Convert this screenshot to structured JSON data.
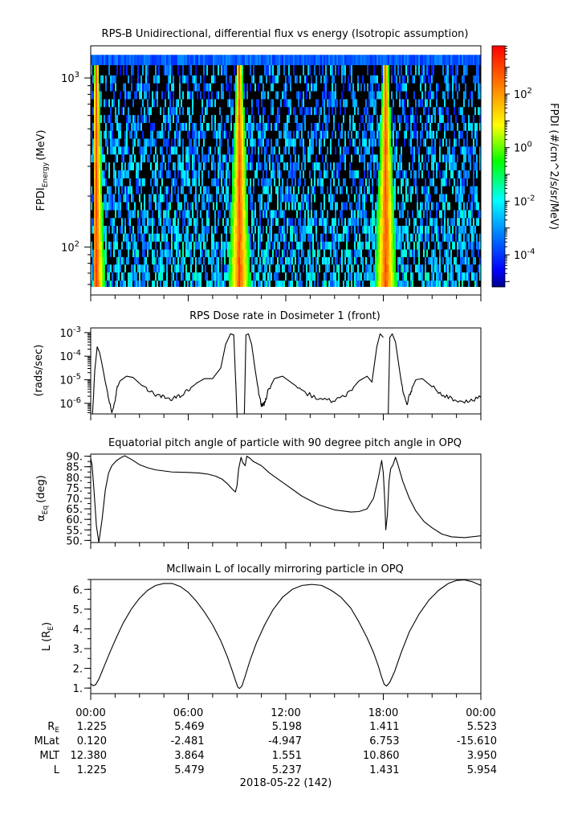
{
  "chart_data": [
    {
      "type": "heatmap",
      "title": "RPS-B  Unidirectional, differential flux vs energy (Isotropic assumption)",
      "ylabel": "FPDI",
      "ylabel_sub": "Energy",
      "ylabel_unit": "(MeV)",
      "yscale": "log",
      "ylim": [
        52,
        1550
      ],
      "ytick_labels": [
        {
          "value": 100,
          "base": "10",
          "exp": "2"
        },
        {
          "value": 1000,
          "base": "10",
          "exp": "3"
        }
      ],
      "xlim": [
        0,
        24
      ],
      "energy_bins_mev": [
        60,
        67,
        75,
        83,
        92,
        102,
        114,
        127,
        141,
        157,
        175,
        195,
        218,
        242,
        270,
        301,
        335,
        373,
        416,
        463,
        515,
        574,
        639,
        712,
        793,
        884,
        985,
        1097,
        1300
      ],
      "bright_bands_hours": [
        {
          "center": 0.35,
          "width": 0.55,
          "shape": "decay-right"
        },
        {
          "center": 9.15,
          "width": 0.7,
          "shape": "symmetric"
        },
        {
          "center": 18.15,
          "width": 0.7,
          "shape": "symmetric"
        }
      ],
      "colorbar": {
        "label": "FPDI (#/cm^2/s/sr/MeV)",
        "scale": "log",
        "range": [
          -5.2,
          3.8
        ],
        "tick_labels": [
          {
            "value": 2,
            "base": "10",
            "exp": "2"
          },
          {
            "value": 0,
            "base": "10",
            "exp": "0"
          },
          {
            "value": -2,
            "base": "10",
            "exp": "-2"
          },
          {
            "value": -4,
            "base": "10",
            "exp": "-4"
          }
        ],
        "colors": [
          "#00008b",
          "#0000ff",
          "#0080ff",
          "#00ffff",
          "#00ff00",
          "#ffff00",
          "#ff8000",
          "#ff0000"
        ]
      }
    },
    {
      "type": "line",
      "title": "RPS  Dose rate in Dosimeter 1 (front)",
      "ylabel": "(rads/sec)",
      "yscale": "log",
      "ylim": [
        -6.45,
        -2.8
      ],
      "ytick_labels": [
        {
          "value": -3,
          "base": "10",
          "exp": "-3"
        },
        {
          "value": -4,
          "base": "10",
          "exp": "-4"
        },
        {
          "value": -5,
          "base": "10",
          "exp": "-5"
        },
        {
          "value": -6,
          "base": "10",
          "exp": "-6"
        }
      ],
      "xlim": [
        0,
        24
      ],
      "series": [
        {
          "x": [
            0.1,
            0.25,
            0.4,
            0.55,
            0.7,
            0.9,
            1.1,
            1.3,
            1.5,
            1.6,
            1.8,
            2.2,
            2.6,
            3.0,
            3.5,
            4.0,
            4.5,
            5.0,
            5.5,
            6.0,
            6.5,
            7.0,
            7.5,
            8.0,
            8.3,
            8.6,
            8.8,
            9.0
          ],
          "y": [
            -6.6,
            -4.6,
            -3.6,
            -3.85,
            -4.35,
            -5.1,
            -5.8,
            -6.4,
            -5.9,
            -5.4,
            -5.05,
            -4.85,
            -4.9,
            -5.15,
            -5.45,
            -5.65,
            -5.75,
            -5.8,
            -5.7,
            -5.45,
            -5.15,
            -4.95,
            -4.95,
            -4.5,
            -3.5,
            -3.05,
            -3.1,
            -6.5
          ]
        },
        {
          "x": [
            9.45,
            9.55,
            9.7,
            9.9,
            10.1,
            10.3,
            10.5,
            10.7,
            10.9,
            11.3,
            11.8,
            12.5,
            13.2,
            14.0,
            14.8,
            15.4,
            16.0,
            16.5,
            17.0,
            17.3,
            17.6,
            17.8,
            18.0
          ],
          "y": [
            -6.5,
            -3.1,
            -3.05,
            -3.5,
            -4.5,
            -5.4,
            -6.1,
            -6.0,
            -5.5,
            -4.95,
            -4.85,
            -5.2,
            -5.55,
            -5.8,
            -5.9,
            -5.8,
            -5.45,
            -5.05,
            -4.85,
            -5.1,
            -3.6,
            -3.05,
            -3.2
          ]
        },
        {
          "x": [
            18.3,
            18.4,
            18.55,
            18.75,
            19.0,
            19.2,
            19.45,
            19.6,
            19.8,
            20.0,
            20.4,
            21.0,
            21.6,
            22.2,
            22.8,
            23.4,
            24.0
          ],
          "y": [
            -6.6,
            -3.2,
            -3.05,
            -3.4,
            -4.6,
            -5.5,
            -6.05,
            -5.7,
            -5.3,
            -5.0,
            -4.95,
            -5.3,
            -5.6,
            -5.8,
            -5.9,
            -5.9,
            -5.75
          ]
        }
      ]
    },
    {
      "type": "line",
      "title": "Equatorial pitch angle of particle with 90 degree pitch angle in OPQ",
      "ylabel": "α",
      "ylabel_sub": "Eq",
      "ylabel_unit": "(deg)",
      "ylim": [
        49,
        91
      ],
      "yticks": [
        50,
        55,
        60,
        65,
        70,
        75,
        80,
        85,
        90
      ],
      "ytick_labels": [
        "50.",
        "55.",
        "60.",
        "65.",
        "70.",
        "75.",
        "80.",
        "85.",
        "90."
      ],
      "xlim": [
        0,
        24
      ],
      "series": [
        {
          "x": [
            0.0,
            0.08,
            0.2,
            0.35,
            0.5,
            0.7,
            0.9,
            1.1,
            1.3,
            1.6,
            1.9,
            2.1,
            2.5,
            3.0,
            3.5,
            4.0,
            5.0,
            6.0,
            6.7,
            7.2,
            7.7,
            8.1,
            8.4,
            8.7,
            8.9,
            9.0,
            9.1,
            9.25,
            9.35,
            9.5,
            9.6,
            9.8,
            10.0,
            10.5,
            11.0,
            12.0,
            13.0,
            14.0,
            15.0,
            16.0,
            16.5,
            17.0,
            17.4,
            17.7,
            17.9,
            18.0,
            18.1,
            18.15,
            18.25,
            18.35,
            18.45,
            18.6,
            18.75,
            18.9,
            19.2,
            19.6,
            20.0,
            20.5,
            21.0,
            21.6,
            22.2,
            23.0,
            24.0
          ],
          "y": [
            89,
            86,
            74,
            57,
            49,
            60,
            74,
            82,
            85.5,
            88,
            89.5,
            90.2,
            88.5,
            86,
            84.5,
            83.5,
            82.5,
            82.3,
            82.0,
            81.5,
            80.5,
            79,
            77,
            74.5,
            73,
            76,
            84,
            89.5,
            87,
            85.5,
            90,
            89,
            87.5,
            85.5,
            82,
            76.5,
            71,
            67,
            64.5,
            63.5,
            63.7,
            65,
            70,
            80,
            88,
            82,
            67,
            55,
            62,
            78,
            84,
            86,
            89.5,
            86,
            78,
            70,
            64,
            59,
            56,
            53,
            51.7,
            51.3,
            52.2
          ]
        }
      ]
    },
    {
      "type": "line",
      "title": "McIlwain L of locally mirroring particle in OPQ",
      "ylabel": "L (R",
      "ylabel_sub": "E",
      "ylabel_unit": ")",
      "ylim": [
        0.72,
        6.5
      ],
      "yticks": [
        1,
        2,
        3,
        4,
        5,
        6
      ],
      "ytick_labels": [
        "1.",
        "2.",
        "3.",
        "4.",
        "5.",
        "6."
      ],
      "xlim": [
        0,
        24
      ],
      "series": [
        {
          "x": [
            0.0,
            0.15,
            0.3,
            0.5,
            0.8,
            1.2,
            1.6,
            2.0,
            2.5,
            3.0,
            3.5,
            4.0,
            4.5,
            5.0,
            5.5,
            6.0,
            6.5,
            7.0,
            7.5,
            8.0,
            8.4,
            8.7,
            8.9,
            9.05,
            9.15,
            9.3,
            9.5,
            9.8,
            10.2,
            10.7,
            11.2,
            11.8,
            12.4,
            13.0,
            13.6,
            14.2,
            14.8,
            15.4,
            16.0,
            16.5,
            17.0,
            17.4,
            17.7,
            17.9,
            18.05,
            18.2,
            18.4,
            18.7,
            19.1,
            19.6,
            20.2,
            20.8,
            21.4,
            22.0,
            22.5,
            23.0,
            23.5,
            24.0
          ],
          "y": [
            1.22,
            1.12,
            1.17,
            1.45,
            2.05,
            2.85,
            3.6,
            4.3,
            5.0,
            5.55,
            5.95,
            6.2,
            6.3,
            6.3,
            6.15,
            5.85,
            5.4,
            4.85,
            4.2,
            3.4,
            2.6,
            1.9,
            1.4,
            1.05,
            0.98,
            1.1,
            1.6,
            2.4,
            3.3,
            4.2,
            4.95,
            5.6,
            6.0,
            6.2,
            6.25,
            6.2,
            5.95,
            5.6,
            5.05,
            4.35,
            3.55,
            2.8,
            2.1,
            1.55,
            1.2,
            1.1,
            1.3,
            1.85,
            2.8,
            3.85,
            4.75,
            5.45,
            5.95,
            6.3,
            6.45,
            6.48,
            6.38,
            6.2
          ]
        }
      ]
    }
  ],
  "x_axis": {
    "tick_labels": [
      "00:00",
      "06:00",
      "12:00",
      "18:00",
      "00:00"
    ],
    "date_label": "2018-05-22 (142)"
  },
  "ephemeris": {
    "rows": [
      {
        "label": "R",
        "sub": "E",
        "values": [
          "1.225",
          "5.469",
          "5.198",
          "1.411",
          "5.523"
        ]
      },
      {
        "label": "MLat",
        "sub": "",
        "values": [
          "0.120",
          "-2.481",
          "-4.947",
          "6.753",
          "-15.610"
        ]
      },
      {
        "label": "MLT",
        "sub": "",
        "values": [
          "12.380",
          "3.864",
          "1.551",
          "10.860",
          "3.950"
        ]
      },
      {
        "label": "L",
        "sub": "",
        "values": [
          "1.225",
          "5.479",
          "5.237",
          "1.431",
          "5.954"
        ]
      }
    ]
  }
}
